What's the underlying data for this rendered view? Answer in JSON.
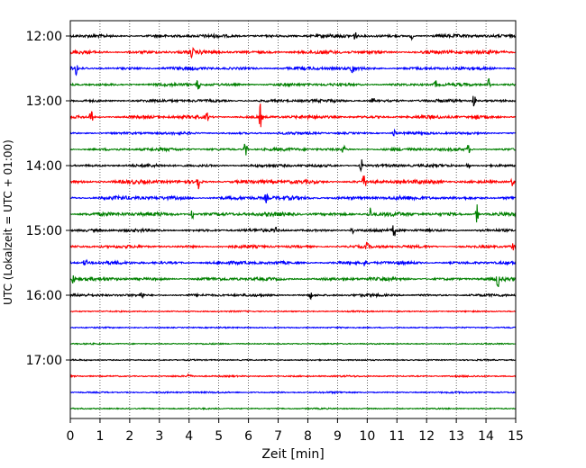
{
  "chart_data": {
    "type": "line",
    "xlabel": "Zeit  [min]",
    "ylabel": "UTC (Lokalzeit = UTC + 01:00)",
    "xlim": [
      0,
      15
    ],
    "x_ticks": [
      0,
      1,
      2,
      3,
      4,
      5,
      6,
      7,
      8,
      9,
      10,
      11,
      12,
      13,
      14,
      15
    ],
    "x_tick_labels": [
      "0",
      "1",
      "2",
      "3",
      "4",
      "5",
      "6",
      "7",
      "8",
      "9",
      "10",
      "11",
      "12",
      "13",
      "14",
      "15"
    ],
    "y_tick_labels": [
      "12:00",
      "13:00",
      "14:00",
      "15:00",
      "16:00",
      "17:00"
    ],
    "grid": "vertical dotted at each minute",
    "trace_colors": [
      "#000000",
      "#ff0000",
      "#0000ff",
      "#008000"
    ],
    "series": [
      {
        "start": "12:00",
        "amplitude": 1.0,
        "events": [
          {
            "x": 9.6,
            "size": 1.6
          },
          {
            "x": 11.5,
            "size": 1.2
          }
        ]
      },
      {
        "start": "12:15",
        "amplitude": 1.1,
        "events": [
          {
            "x": 4.1,
            "size": 1.8
          }
        ]
      },
      {
        "start": "12:30",
        "amplitude": 1.0,
        "events": [
          {
            "x": 0.2,
            "size": 2.2
          },
          {
            "x": 9.5,
            "size": 2.4
          }
        ]
      },
      {
        "start": "12:45",
        "amplitude": 0.9,
        "events": [
          {
            "x": 4.3,
            "size": 2.5
          },
          {
            "x": 12.3,
            "size": 1.5
          },
          {
            "x": 14.1,
            "size": 2.2
          }
        ]
      },
      {
        "start": "13:00",
        "amplitude": 0.9,
        "events": [
          {
            "x": 13.6,
            "size": 2.6
          },
          {
            "x": 10.2,
            "size": 1.2
          }
        ]
      },
      {
        "start": "13:15",
        "amplitude": 1.0,
        "events": [
          {
            "x": 0.7,
            "size": 2.6
          },
          {
            "x": 4.6,
            "size": 1.8
          },
          {
            "x": 6.4,
            "size": 4.5
          },
          {
            "x": 13.7,
            "size": 1.5
          }
        ]
      },
      {
        "start": "13:30",
        "amplitude": 0.8,
        "events": [
          {
            "x": 10.9,
            "size": 1.6
          }
        ]
      },
      {
        "start": "13:45",
        "amplitude": 0.9,
        "events": [
          {
            "x": 5.9,
            "size": 3.0
          },
          {
            "x": 13.4,
            "size": 1.8
          },
          {
            "x": 9.2,
            "size": 1.4
          }
        ]
      },
      {
        "start": "14:00",
        "amplitude": 0.9,
        "events": [
          {
            "x": 9.8,
            "size": 2.5
          },
          {
            "x": 13.4,
            "size": 1.3
          }
        ]
      },
      {
        "start": "14:15",
        "amplitude": 1.2,
        "events": [
          {
            "x": 4.3,
            "size": 3.8
          },
          {
            "x": 9.9,
            "size": 2.8
          },
          {
            "x": 14.9,
            "size": 1.6
          }
        ]
      },
      {
        "start": "14:30",
        "amplitude": 1.2,
        "events": [
          {
            "x": 6.6,
            "size": 1.4
          }
        ]
      },
      {
        "start": "14:45",
        "amplitude": 1.2,
        "events": [
          {
            "x": 4.1,
            "size": 2.2
          },
          {
            "x": 10.1,
            "size": 2.2
          },
          {
            "x": 13.7,
            "size": 3.5
          }
        ]
      },
      {
        "start": "15:00",
        "amplitude": 0.9,
        "events": [
          {
            "x": 10.9,
            "size": 2.8
          },
          {
            "x": 9.5,
            "size": 1.4
          },
          {
            "x": 6.9,
            "size": 1.2
          }
        ]
      },
      {
        "start": "15:15",
        "amplitude": 0.9,
        "events": [
          {
            "x": 10.0,
            "size": 1.5
          },
          {
            "x": 14.9,
            "size": 1.3
          }
        ]
      },
      {
        "start": "15:30",
        "amplitude": 1.0,
        "events": [
          {
            "x": 0.5,
            "size": 1.8
          },
          {
            "x": 9.9,
            "size": 1.4
          }
        ]
      },
      {
        "start": "15:45",
        "amplitude": 1.0,
        "events": [
          {
            "x": 0.1,
            "size": 2.0
          },
          {
            "x": 14.4,
            "size": 3.0
          }
        ]
      },
      {
        "start": "16:00",
        "amplitude": 0.8,
        "events": [
          {
            "x": 2.4,
            "size": 1.6
          },
          {
            "x": 8.1,
            "size": 1.2
          }
        ]
      },
      {
        "start": "16:15",
        "amplitude": 0.4,
        "events": []
      },
      {
        "start": "16:30",
        "amplitude": 0.4,
        "events": []
      },
      {
        "start": "16:45",
        "amplitude": 0.4,
        "events": []
      },
      {
        "start": "17:00",
        "amplitude": 0.4,
        "events": []
      },
      {
        "start": "17:15",
        "amplitude": 0.5,
        "events": [
          {
            "x": 4.0,
            "size": 1.1
          }
        ]
      },
      {
        "start": "17:30",
        "amplitude": 0.5,
        "events": []
      },
      {
        "start": "17:45",
        "amplitude": 0.4,
        "events": []
      }
    ]
  }
}
